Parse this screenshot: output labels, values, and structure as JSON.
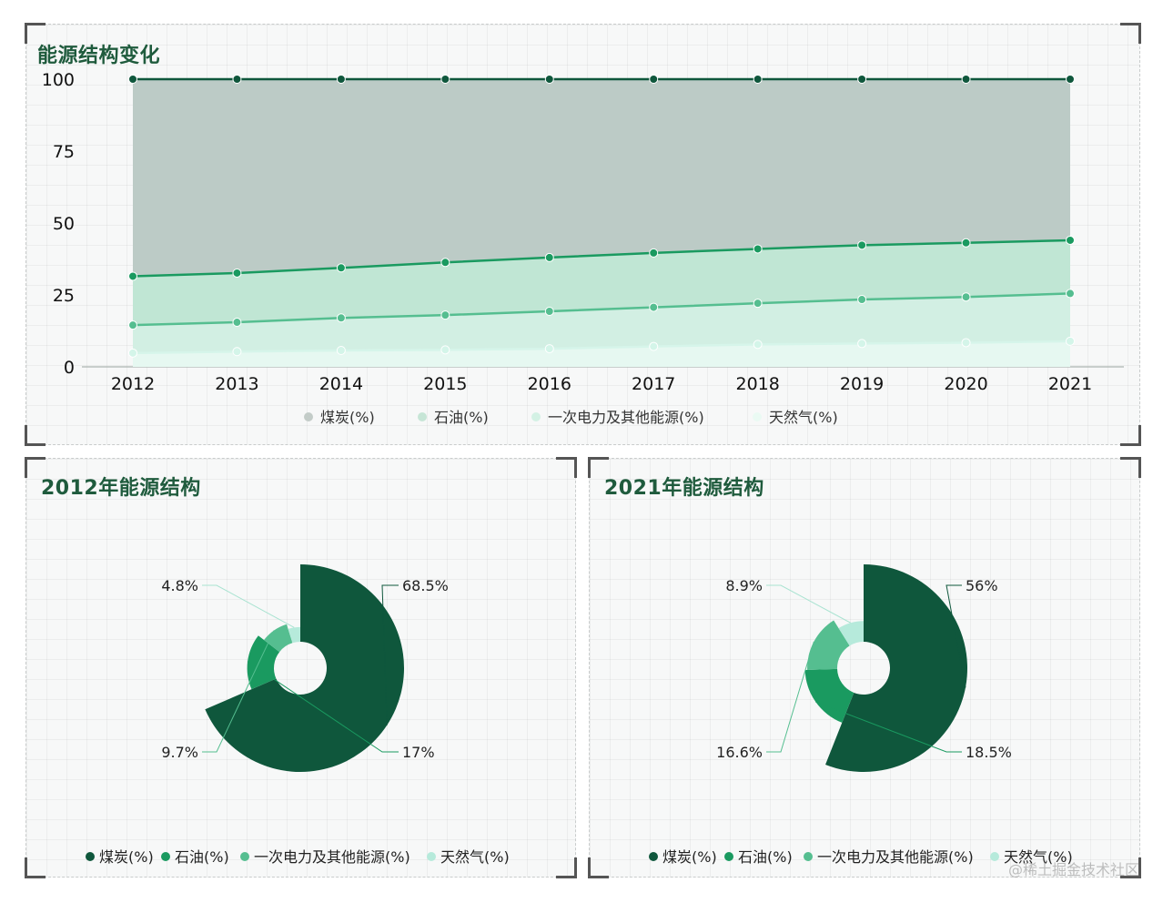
{
  "top_panel": {
    "title": "能源结构变化"
  },
  "pie2012_panel": {
    "title": "2012年能源结构"
  },
  "pie2021_panel": {
    "title": "2021年能源结构"
  },
  "watermark": "@稀土掘金技术社区",
  "colors": {
    "coal": "#0f573c",
    "oil": "#1a9a60",
    "primary": "#55be90",
    "gas": "#b6eadb",
    "title": "#1f5b3d"
  },
  "chart_data": [
    {
      "type": "area",
      "title": "能源结构变化",
      "stacked": true,
      "x": [
        "2012",
        "2013",
        "2014",
        "2015",
        "2016",
        "2017",
        "2018",
        "2019",
        "2020",
        "2021"
      ],
      "ylim": [
        0,
        100
      ],
      "yticks": [
        "0",
        "25",
        "50",
        "75",
        "100"
      ],
      "legend_position": "bottom",
      "series": [
        {
          "name": "煤炭(%)",
          "values": [
            68.5,
            67.4,
            65.6,
            63.7,
            62.0,
            60.4,
            59.0,
            57.7,
            56.9,
            56.0
          ]
        },
        {
          "name": "石油(%)",
          "values": [
            17.0,
            17.1,
            17.4,
            18.3,
            18.7,
            18.9,
            18.9,
            18.9,
            18.8,
            18.5
          ]
        },
        {
          "name": "一次电力及其他能源(%)",
          "values": [
            9.7,
            10.2,
            11.3,
            12.1,
            13.0,
            13.6,
            14.3,
            15.3,
            15.9,
            16.6
          ]
        },
        {
          "name": "天然气(%)",
          "values": [
            4.8,
            5.3,
            5.7,
            5.9,
            6.3,
            7.1,
            7.8,
            8.1,
            8.4,
            8.9
          ]
        }
      ]
    },
    {
      "type": "pie",
      "title": "2012年能源结构",
      "rose": true,
      "labels": [
        "煤炭(%)",
        "石油(%)",
        "一次电力及其他能源(%)",
        "天然气(%)"
      ],
      "values": [
        68.5,
        17,
        9.7,
        4.8
      ],
      "value_labels": [
        "68.5%",
        "17%",
        "9.7%",
        "4.8%"
      ],
      "legend_position": "bottom"
    },
    {
      "type": "pie",
      "title": "2021年能源结构",
      "rose": true,
      "labels": [
        "煤炭(%)",
        "石油(%)",
        "一次电力及其他能源(%)",
        "天然气(%)"
      ],
      "values": [
        56,
        18.5,
        16.6,
        8.9
      ],
      "value_labels": [
        "56%",
        "18.5%",
        "16.6%",
        "8.9%"
      ],
      "legend_position": "bottom"
    }
  ]
}
